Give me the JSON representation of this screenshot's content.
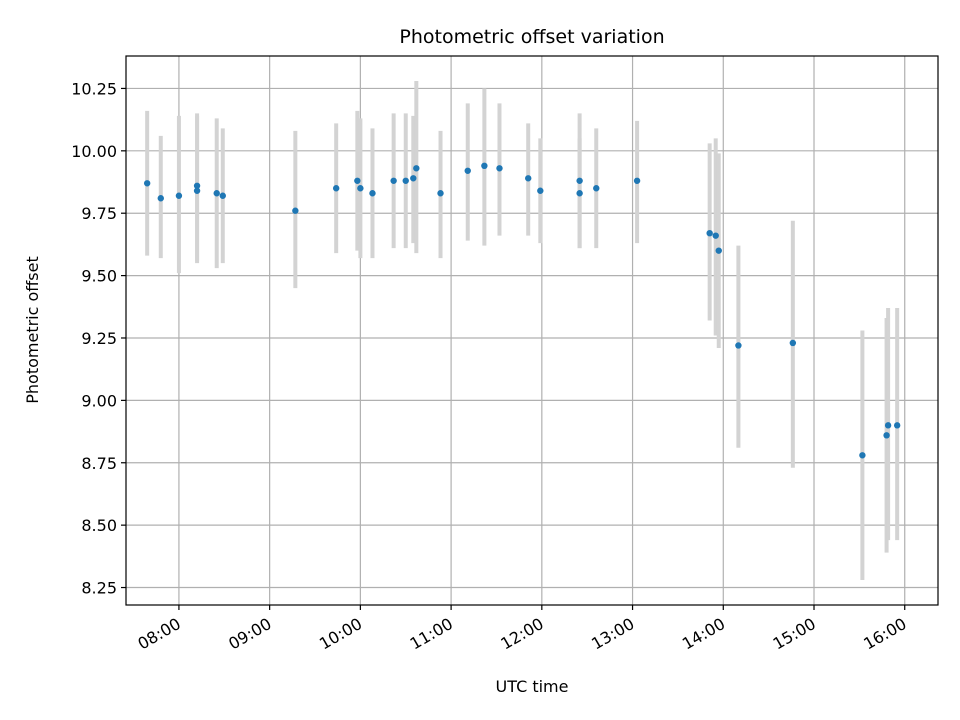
{
  "chart_data": {
    "type": "scatter",
    "title": "Photometric offset variation",
    "xlabel": "UTC time",
    "ylabel": "Photometric offset",
    "grid": true,
    "error_bar_color": "#d3d3d3",
    "point_color": "#1f77b4",
    "xlim": [
      "07:25",
      "16:22"
    ],
    "ylim": [
      8.18,
      10.38
    ],
    "x_ticks": [
      "08:00",
      "09:00",
      "10:00",
      "11:00",
      "12:00",
      "13:00",
      "14:00",
      "15:00",
      "16:00"
    ],
    "y_ticks": [
      "8.25",
      "8.50",
      "8.75",
      "9.00",
      "9.25",
      "9.50",
      "9.75",
      "10.00",
      "10.25"
    ],
    "points": [
      {
        "t": "07:39",
        "y": 9.87,
        "err_low": 9.58,
        "err_high": 10.16
      },
      {
        "t": "07:48",
        "y": 9.81,
        "err_low": 9.57,
        "err_high": 10.06
      },
      {
        "t": "08:00",
        "y": 9.82,
        "err_low": 9.51,
        "err_high": 10.14
      },
      {
        "t": "08:12",
        "y": 9.86,
        "err_low": 9.56,
        "err_high": 10.15
      },
      {
        "t": "08:12",
        "y": 9.84,
        "err_low": 9.55,
        "err_high": 10.14
      },
      {
        "t": "08:25",
        "y": 9.83,
        "err_low": 9.53,
        "err_high": 10.13
      },
      {
        "t": "08:29",
        "y": 9.82,
        "err_low": 9.55,
        "err_high": 10.09
      },
      {
        "t": "09:17",
        "y": 9.76,
        "err_low": 9.45,
        "err_high": 10.08
      },
      {
        "t": "09:44",
        "y": 9.85,
        "err_low": 9.59,
        "err_high": 10.11
      },
      {
        "t": "09:58",
        "y": 9.88,
        "err_low": 9.6,
        "err_high": 10.16
      },
      {
        "t": "10:00",
        "y": 9.85,
        "err_low": 9.57,
        "err_high": 10.13
      },
      {
        "t": "10:08",
        "y": 9.83,
        "err_low": 9.57,
        "err_high": 10.09
      },
      {
        "t": "10:22",
        "y": 9.88,
        "err_low": 9.61,
        "err_high": 10.15
      },
      {
        "t": "10:30",
        "y": 9.88,
        "err_low": 9.61,
        "err_high": 10.15
      },
      {
        "t": "10:35",
        "y": 9.89,
        "err_low": 9.63,
        "err_high": 10.14
      },
      {
        "t": "10:37",
        "y": 9.93,
        "err_low": 9.59,
        "err_high": 10.28
      },
      {
        "t": "10:53",
        "y": 9.83,
        "err_low": 9.57,
        "err_high": 10.08
      },
      {
        "t": "11:11",
        "y": 9.92,
        "err_low": 9.64,
        "err_high": 10.19
      },
      {
        "t": "11:22",
        "y": 9.94,
        "err_low": 9.62,
        "err_high": 10.25
      },
      {
        "t": "11:32",
        "y": 9.93,
        "err_low": 9.66,
        "err_high": 10.19
      },
      {
        "t": "11:51",
        "y": 9.89,
        "err_low": 9.66,
        "err_high": 10.11
      },
      {
        "t": "11:59",
        "y": 9.84,
        "err_low": 9.63,
        "err_high": 10.05
      },
      {
        "t": "12:25",
        "y": 9.88,
        "err_low": 9.61,
        "err_high": 10.15
      },
      {
        "t": "12:25",
        "y": 9.83,
        "err_low": 9.61,
        "err_high": 10.05
      },
      {
        "t": "12:36",
        "y": 9.85,
        "err_low": 9.61,
        "err_high": 10.09
      },
      {
        "t": "13:03",
        "y": 9.88,
        "err_low": 9.63,
        "err_high": 10.12
      },
      {
        "t": "13:51",
        "y": 9.67,
        "err_low": 9.32,
        "err_high": 10.03
      },
      {
        "t": "13:55",
        "y": 9.66,
        "err_low": 9.26,
        "err_high": 10.05
      },
      {
        "t": "13:57",
        "y": 9.6,
        "err_low": 9.21,
        "err_high": 9.99
      },
      {
        "t": "14:10",
        "y": 9.22,
        "err_low": 8.81,
        "err_high": 9.62
      },
      {
        "t": "14:46",
        "y": 9.23,
        "err_low": 8.73,
        "err_high": 9.72
      },
      {
        "t": "15:32",
        "y": 8.78,
        "err_low": 8.28,
        "err_high": 9.28
      },
      {
        "t": "15:48",
        "y": 8.86,
        "err_low": 8.39,
        "err_high": 9.33
      },
      {
        "t": "15:49",
        "y": 8.9,
        "err_low": 8.44,
        "err_high": 9.37
      },
      {
        "t": "15:55",
        "y": 8.9,
        "err_low": 8.44,
        "err_high": 9.37
      }
    ]
  }
}
